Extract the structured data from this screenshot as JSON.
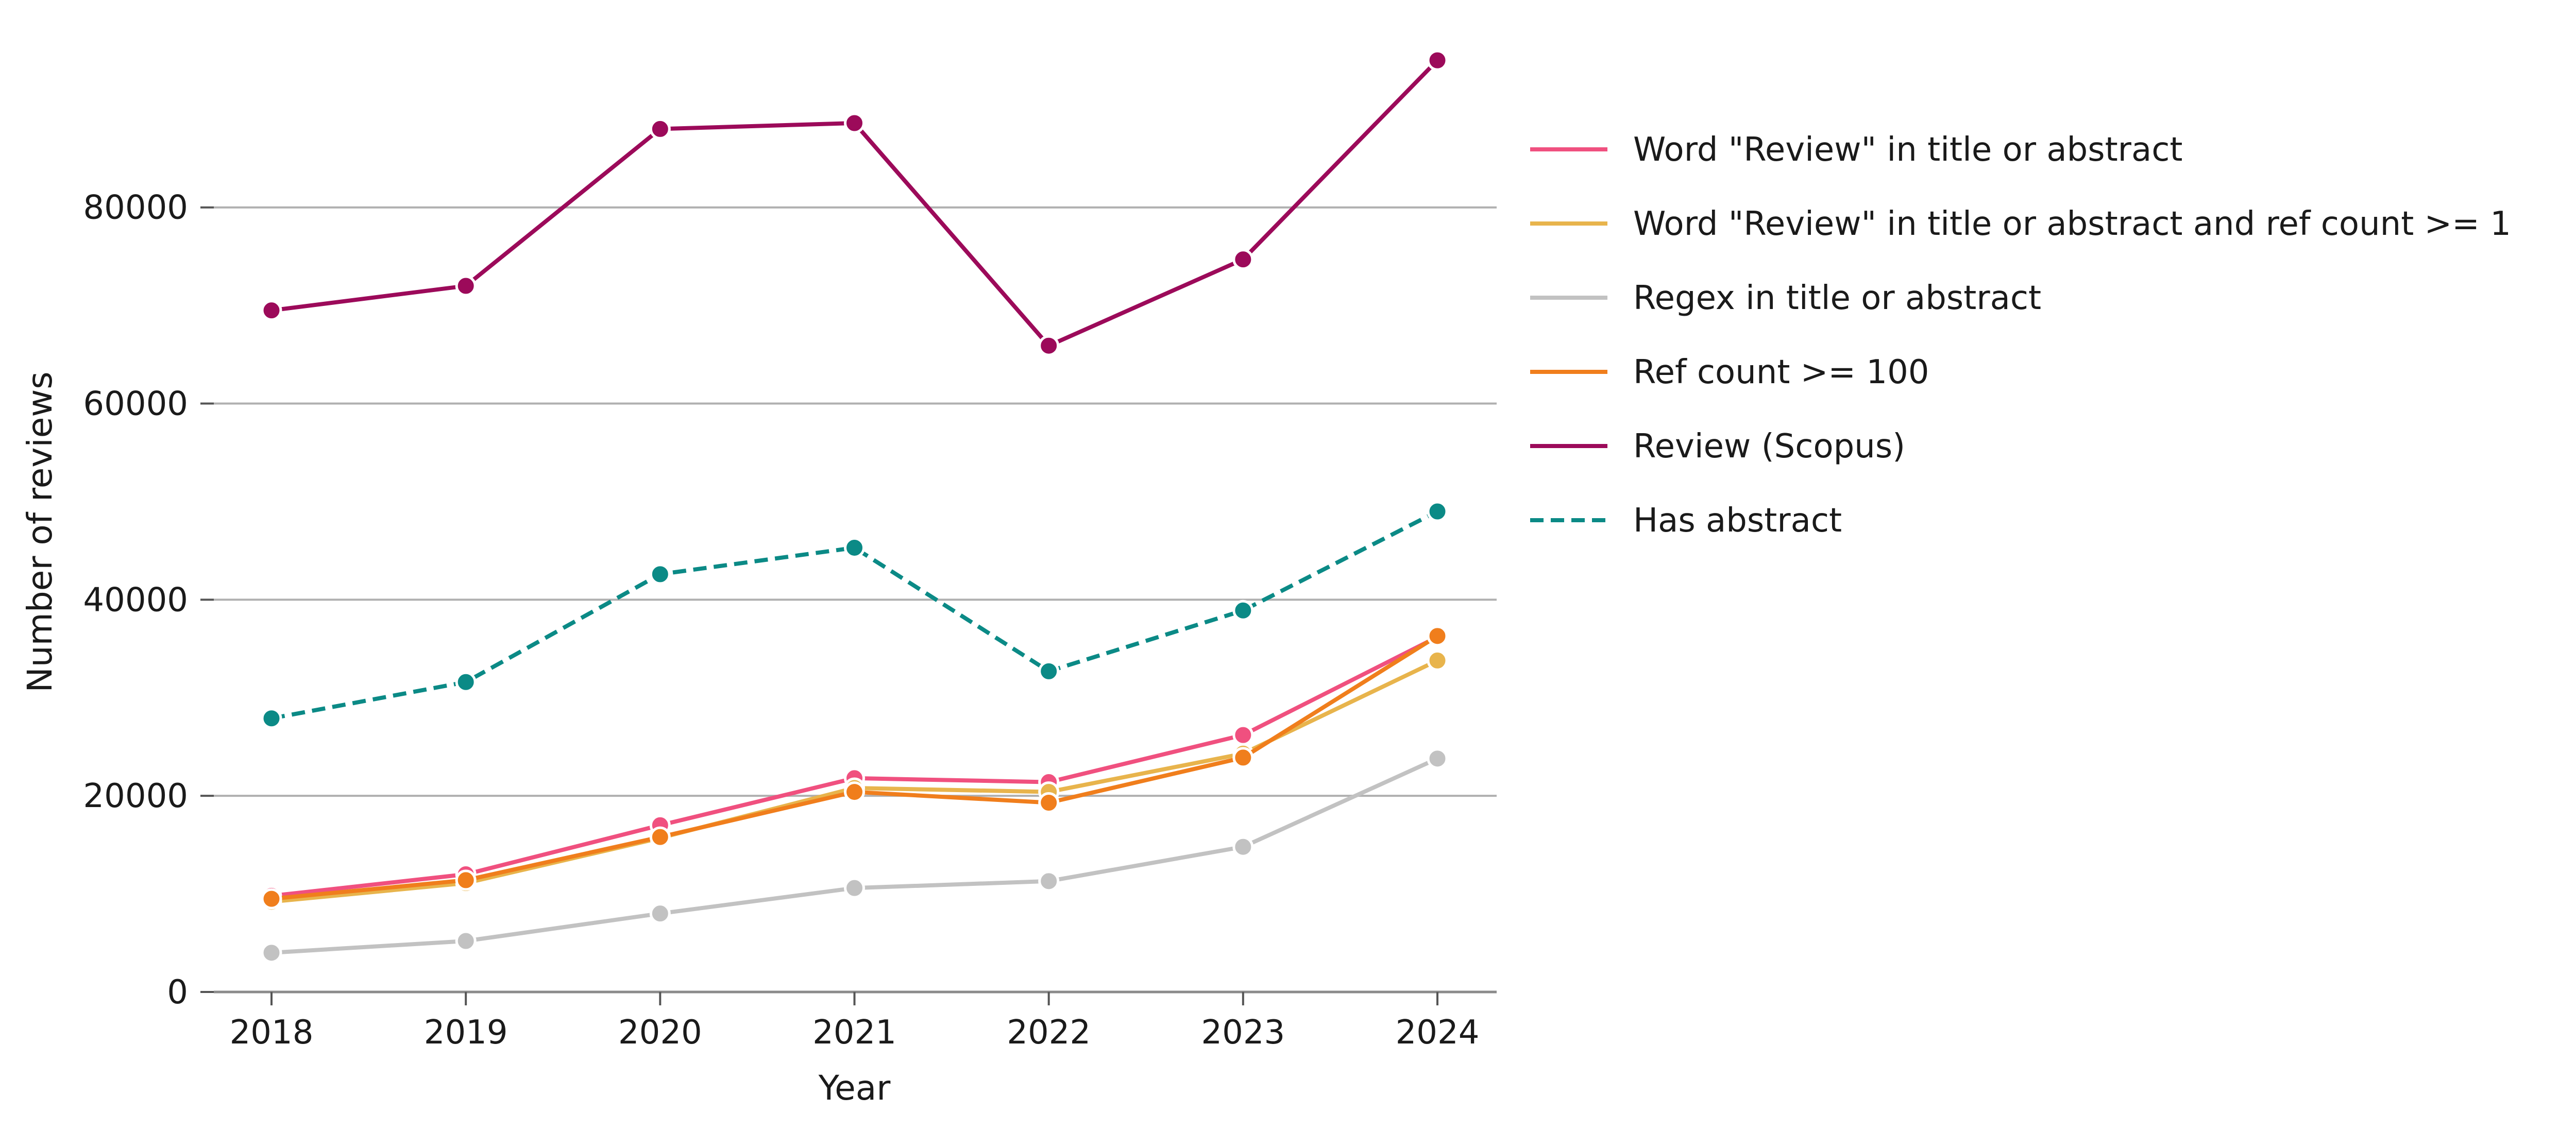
{
  "chart_data": {
    "type": "line",
    "title": "",
    "xlabel": "Year",
    "ylabel": "Number of reviews",
    "x": [
      "2018",
      "2019",
      "2020",
      "2021",
      "2022",
      "2023",
      "2024"
    ],
    "ylim": [
      0,
      98000
    ],
    "yticks": [
      0,
      20000,
      40000,
      60000,
      80000
    ],
    "yticklabels": [
      "0",
      "20000",
      "40000",
      "60000",
      "80000"
    ],
    "grid": "horizontal",
    "legend_position": "right",
    "series": [
      {
        "name": "Word \"Review\" in title or abstract",
        "color": "#f0507f",
        "dash": "solid",
        "values": [
          9800,
          12000,
          17000,
          21800,
          21400,
          26200,
          36200
        ]
      },
      {
        "name": "Word \"Review\" in title or abstract and ref count >= 1",
        "color": "#e8b44c",
        "dash": "solid",
        "values": [
          9200,
          11100,
          15700,
          20800,
          20400,
          24300,
          33800
        ]
      },
      {
        "name": "Regex in title or abstract",
        "color": "#c2c2c2",
        "dash": "solid",
        "values": [
          4000,
          5200,
          8000,
          10600,
          11300,
          14800,
          23800
        ]
      },
      {
        "name": "Ref count >= 100",
        "color": "#f07e1c",
        "dash": "solid",
        "values": [
          9500,
          11400,
          15800,
          20400,
          19300,
          23900,
          36300
        ]
      },
      {
        "name": "Review (Scopus)",
        "color": "#9c0a5a",
        "dash": "solid",
        "values": [
          69500,
          72000,
          88000,
          88600,
          65900,
          74700,
          95000
        ]
      },
      {
        "name": "Has abstract",
        "color": "#0b8a86",
        "dash": "dashed",
        "values": [
          27900,
          31600,
          42600,
          45300,
          32700,
          38900,
          49000
        ]
      }
    ]
  }
}
